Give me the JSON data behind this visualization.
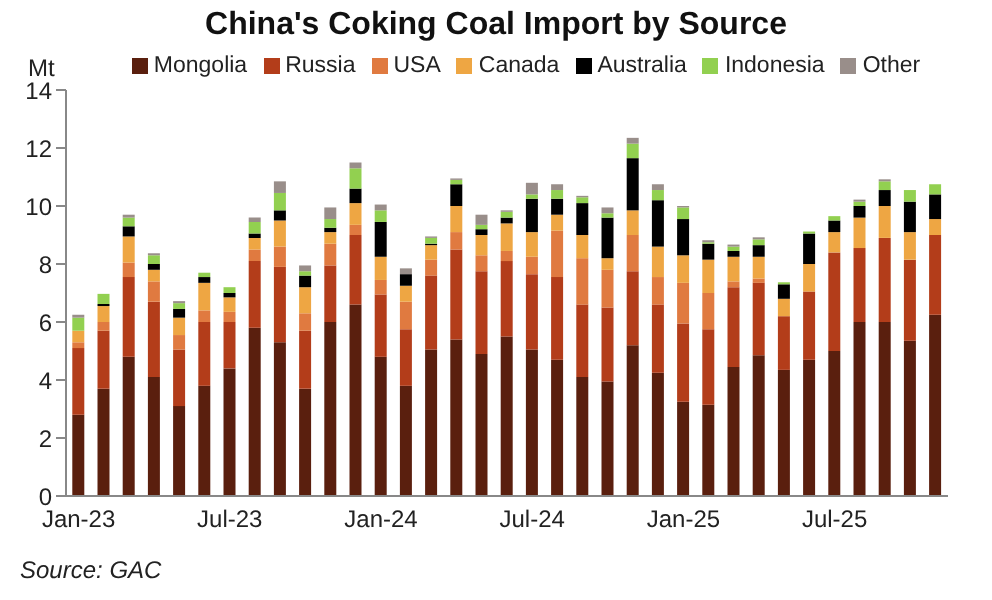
{
  "chart_data": {
    "type": "bar",
    "title": "China's Coking Coal Import by Source",
    "ylabel": "Mt",
    "stacked": true,
    "legend": "top",
    "categories": [
      "Jan-23",
      null,
      null,
      null,
      null,
      null,
      "Jul-23",
      null,
      null,
      null,
      null,
      null,
      "Jan-24",
      null,
      null,
      null,
      null,
      null,
      "Jul-24",
      null,
      null,
      null,
      null,
      null,
      "Jan-25",
      null,
      null,
      null,
      null,
      null,
      "Jul-25",
      null,
      null,
      null,
      null
    ],
    "ylim": [
      0,
      14
    ],
    "yticks": [
      0,
      2,
      4,
      6,
      8,
      10,
      12,
      14
    ],
    "series": [
      {
        "name": "Mongolia",
        "color": "#5a1f0e",
        "values": [
          2.8,
          3.7,
          4.8,
          4.1,
          3.1,
          3.8,
          4.4,
          5.8,
          5.3,
          3.7,
          6.0,
          6.6,
          4.8,
          3.8,
          5.05,
          5.4,
          4.9,
          5.5,
          5.05,
          4.7,
          4.1,
          3.95,
          5.2,
          4.25,
          3.25,
          3.15,
          4.45,
          4.85,
          4.35,
          4.7,
          5.0,
          6.0,
          6.0,
          5.35,
          6.25
        ]
      },
      {
        "name": "Russia",
        "color": "#b33d1a",
        "values": [
          2.3,
          2.0,
          2.75,
          2.6,
          1.95,
          2.2,
          1.6,
          2.3,
          2.6,
          2.0,
          1.95,
          2.4,
          2.15,
          1.95,
          2.55,
          3.1,
          2.85,
          2.6,
          2.6,
          2.85,
          2.5,
          2.55,
          2.55,
          2.35,
          2.7,
          2.6,
          2.75,
          2.5,
          1.85,
          2.35,
          3.4,
          2.55,
          2.9,
          2.8,
          2.75
        ]
      },
      {
        "name": "USA",
        "color": "#e07a40",
        "values": [
          0.2,
          0.3,
          0.5,
          0.7,
          0.5,
          0.4,
          0.35,
          0.4,
          0.7,
          0.6,
          0.75,
          0.35,
          0.5,
          0.95,
          0.55,
          0.6,
          0.55,
          0.35,
          0.6,
          1.6,
          1.6,
          1.3,
          1.25,
          0.95,
          1.4,
          1.25,
          0.2,
          0.15,
          0,
          0,
          0,
          0,
          0,
          0,
          0
        ]
      },
      {
        "name": "Canada",
        "color": "#eea643",
        "values": [
          0.4,
          0.55,
          0.9,
          0.4,
          0.6,
          0.95,
          0.5,
          0.4,
          0.9,
          0.9,
          0.4,
          0.75,
          0.8,
          0.55,
          0.5,
          0.9,
          0.7,
          0.95,
          0.85,
          0.55,
          0.8,
          0.4,
          0.85,
          1.05,
          0.95,
          1.15,
          0.85,
          0.75,
          0.6,
          0.95,
          0.7,
          1.05,
          1.1,
          0.95,
          0.55
        ]
      },
      {
        "name": "Australia",
        "color": "#000000",
        "values": [
          0,
          0.07,
          0.35,
          0.2,
          0.3,
          0.2,
          0.15,
          0.15,
          0.35,
          0.4,
          0.15,
          0.5,
          1.2,
          0.4,
          0.05,
          0.75,
          0.2,
          0.2,
          1.15,
          0.55,
          1.1,
          1.4,
          1.8,
          1.6,
          1.25,
          0.55,
          0.2,
          0.4,
          0.5,
          1.05,
          0.4,
          0.4,
          0.55,
          1.05,
          0.85
        ]
      },
      {
        "name": "Indonesia",
        "color": "#92d050",
        "values": [
          0.45,
          0.35,
          0.3,
          0.3,
          0.2,
          0.15,
          0.2,
          0.4,
          0.6,
          0.15,
          0.3,
          0.7,
          0.4,
          0,
          0.2,
          0.15,
          0.15,
          0.2,
          0.15,
          0.3,
          0.2,
          0.15,
          0.5,
          0.35,
          0.4,
          0.05,
          0.15,
          0.2,
          0.07,
          0.07,
          0.15,
          0.15,
          0.3,
          0.4,
          0.35
        ]
      },
      {
        "name": "Other",
        "color": "#998e8a",
        "values": [
          0.1,
          0,
          0.1,
          0.07,
          0.07,
          0,
          0,
          0.15,
          0.4,
          0.2,
          0.4,
          0.2,
          0.2,
          0.2,
          0.05,
          0.05,
          0.35,
          0.05,
          0.4,
          0.2,
          0.05,
          0.2,
          0.2,
          0.2,
          0.05,
          0.07,
          0.07,
          0.07,
          0,
          0,
          0,
          0.07,
          0.07,
          0,
          0
        ]
      }
    ],
    "annotations": [
      "Source: GAC"
    ]
  }
}
